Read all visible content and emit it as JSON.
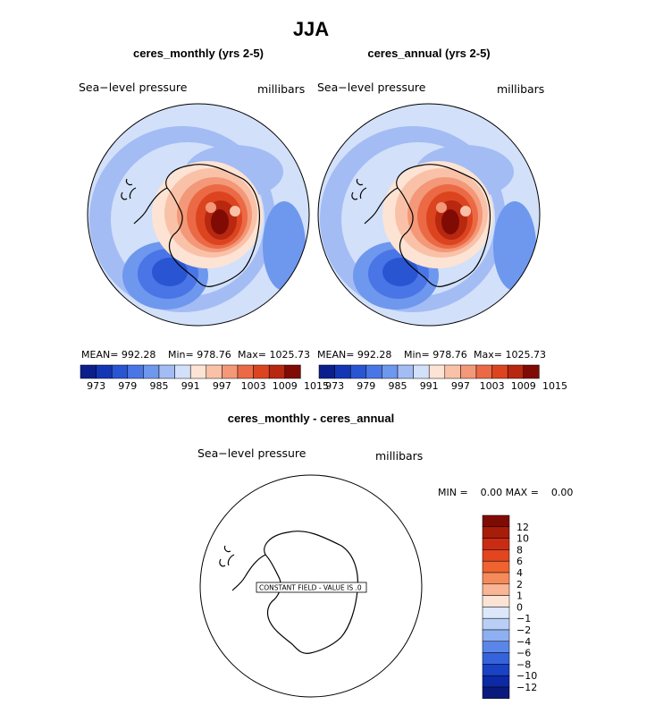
{
  "title": "JJA",
  "panels": [
    {
      "subtitle": "ceres_monthly (yrs 2-5)",
      "left_label": "Sea−level pressure",
      "right_label": "millibars",
      "stats": {
        "mean": "MEAN= 992.28",
        "min": "Min= 978.76",
        "max": "Max= 1025.73"
      }
    },
    {
      "subtitle": "ceres_annual (yrs 2-5)",
      "left_label": "Sea−level pressure",
      "right_label": "millibars",
      "stats": {
        "mean": "MEAN= 992.28",
        "min": "Min= 978.76",
        "max": "Max= 1025.73"
      }
    }
  ],
  "diff_panel": {
    "subtitle": "ceres_monthly - ceres_annual",
    "left_label": "Sea−level pressure",
    "right_label": "millibars",
    "minmax": "MIN =    0.00 MAX =    0.00",
    "note": "CONSTANT FIELD - VALUE IS .0"
  },
  "chart_data": [
    {
      "type": "heatmap",
      "projection": "south-polar-stereographic",
      "field": "Sea-level pressure",
      "units": "millibars",
      "colorbar_ticks": [
        "973",
        "979",
        "985",
        "991",
        "997",
        "1003",
        "1009",
        "1015"
      ],
      "colorbar_colors": [
        "#0a1f8c",
        "#1436b4",
        "#2a55d2",
        "#4a75e6",
        "#6e97ee",
        "#a3bcf4",
        "#d2e0fa",
        "#fde3d3",
        "#f9c2a8",
        "#f39878",
        "#eb6a45",
        "#dc4420",
        "#b82710",
        "#7f0b04"
      ]
    },
    {
      "type": "heatmap",
      "projection": "south-polar-stereographic",
      "field": "Sea-level pressure",
      "units": "millibars",
      "colorbar_ticks": [
        "973",
        "979",
        "985",
        "991",
        "997",
        "1003",
        "1009",
        "1015"
      ],
      "colorbar_colors": [
        "#0a1f8c",
        "#1436b4",
        "#2a55d2",
        "#4a75e6",
        "#6e97ee",
        "#a3bcf4",
        "#d2e0fa",
        "#fde3d3",
        "#f9c2a8",
        "#f39878",
        "#eb6a45",
        "#dc4420",
        "#b82710",
        "#7f0b04"
      ]
    },
    {
      "type": "heatmap",
      "projection": "south-polar-stereographic",
      "field": "Sea-level pressure difference",
      "units": "millibars",
      "constant_value": 0,
      "colorbar_ticks": [
        "12",
        "10",
        "8",
        "6",
        "4",
        "2",
        "1",
        "0",
        "−1",
        "−2",
        "−4",
        "−6",
        "−8",
        "−10",
        "−12"
      ],
      "colorbar_colors": [
        "#7f0b04",
        "#a81c0a",
        "#c92c12",
        "#e2451f",
        "#ee6330",
        "#f58a5a",
        "#f9b595",
        "#fde3d3",
        "#dce8fa",
        "#b9cff6",
        "#8eb0f1",
        "#5b86e9",
        "#3563dc",
        "#1a42c4",
        "#0c29a6",
        "#0a1a7c"
      ]
    }
  ]
}
